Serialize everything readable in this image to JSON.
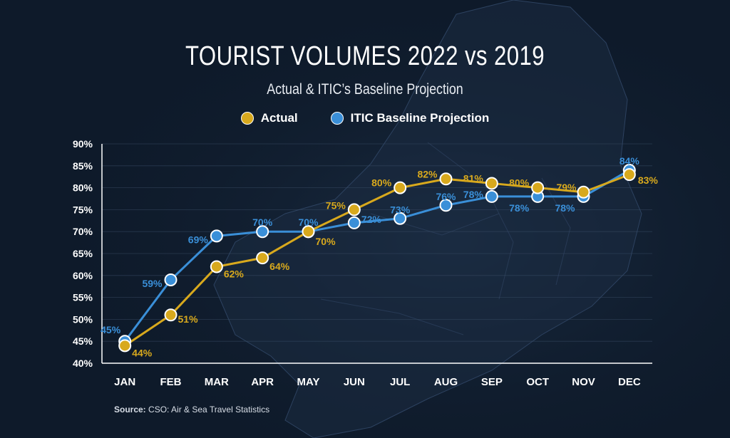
{
  "title": "TOURIST VOLUMES 2022 vs 2019",
  "subtitle": "Actual & ITIC’s Baseline Projection",
  "source": {
    "label": "Source:",
    "text": "CSO: Air & Sea Travel Statistics"
  },
  "colors": {
    "actual": "#d8a91d",
    "itic": "#3a8fd8",
    "background": "#0e1a2a",
    "grid": "#2a3a50"
  },
  "chart_data": {
    "type": "line",
    "categories": [
      "JAN",
      "FEB",
      "MAR",
      "APR",
      "MAY",
      "JUN",
      "JUL",
      "AUG",
      "SEP",
      "OCT",
      "NOV",
      "DEC"
    ],
    "ylim": [
      40,
      90
    ],
    "yticks": [
      "40%",
      "45%",
      "50%",
      "55%",
      "60%",
      "65%",
      "70%",
      "75%",
      "80%",
      "85%",
      "90%"
    ],
    "grid": true,
    "legend_placement": "top-center",
    "series": [
      {
        "name": "Actual",
        "color": "#d8a91d",
        "values": [
          44,
          51,
          62,
          64,
          70,
          75,
          80,
          82,
          81,
          80,
          79,
          83
        ],
        "labels": [
          "44%",
          "51%",
          "62%",
          "64%",
          "70%",
          "75%",
          "80%",
          "82%",
          "81%",
          "80%",
          "79%",
          "83%"
        ]
      },
      {
        "name": "ITIC Baseline Projection",
        "color": "#3a8fd8",
        "values": [
          45,
          59,
          69,
          70,
          70,
          72,
          73,
          76,
          78,
          78,
          78,
          84
        ],
        "labels": [
          "45%",
          "59%",
          "69%",
          "70%",
          "70%",
          "72%",
          "73%",
          "76%",
          "78%",
          "78%",
          "78%",
          "84%"
        ]
      }
    ]
  }
}
